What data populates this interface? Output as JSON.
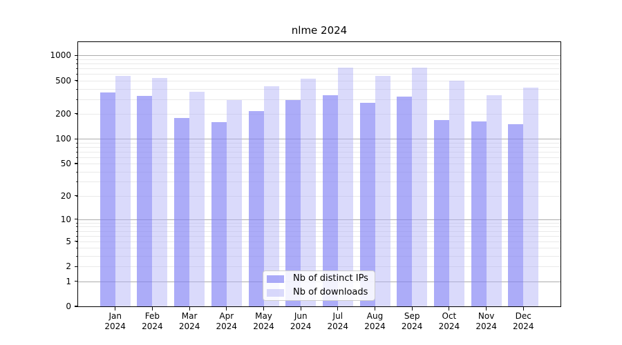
{
  "chart_data": {
    "type": "bar",
    "title": "nlme 2024",
    "categories": [
      "Jan 2024",
      "Feb 2024",
      "Mar 2024",
      "Apr 2024",
      "May 2024",
      "Jun 2024",
      "Jul 2024",
      "Aug 2024",
      "Sep 2024",
      "Oct 2024",
      "Nov 2024",
      "Dec 2024"
    ],
    "series": [
      {
        "name": "Nb of distinct IPs",
        "color": "#8181f4",
        "alpha": 0.66,
        "values": [
          360,
          330,
          177,
          159,
          214,
          295,
          336,
          270,
          320,
          167,
          161,
          150
        ]
      },
      {
        "name": "Nb of downloads",
        "color": "#b2b2f7",
        "alpha": 0.48,
        "values": [
          570,
          540,
          370,
          290,
          425,
          523,
          715,
          570,
          710,
          500,
          335,
          410
        ]
      }
    ],
    "xlabel": "",
    "ylabel": "",
    "yscale": "log1p",
    "yticks": [
      0,
      1,
      2,
      5,
      10,
      20,
      50,
      100,
      200,
      500,
      1000
    ],
    "ylim": [
      0,
      1444
    ],
    "grid": {
      "enabled": true,
      "major_color": "#ababab",
      "minor_color": "#e9e9e9"
    },
    "legend_position": "lower center"
  }
}
